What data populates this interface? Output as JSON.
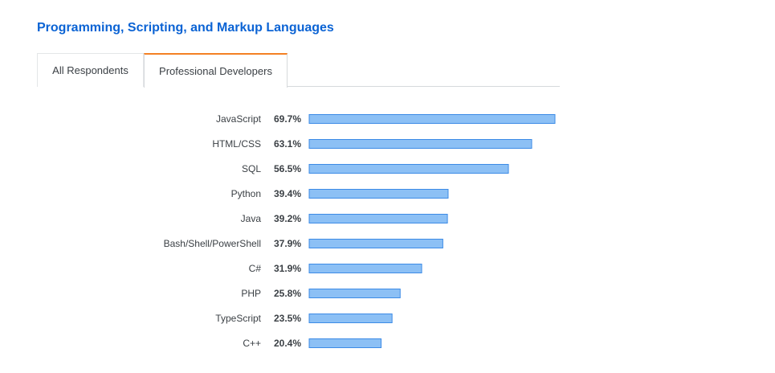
{
  "header": {
    "title": "Programming, Scripting, and Markup Languages"
  },
  "tabs": [
    {
      "label": "All Respondents",
      "active": false
    },
    {
      "label": "Professional Developers",
      "active": true
    }
  ],
  "colors": {
    "bar_fill": "#8cc0f5",
    "bar_stroke": "#3d8be6",
    "title": "#0b63d4",
    "active_tab_border": "#f48024"
  },
  "chart_data": {
    "type": "bar",
    "orientation": "horizontal",
    "categories": [
      "JavaScript",
      "HTML/CSS",
      "SQL",
      "Python",
      "Java",
      "Bash/Shell/PowerShell",
      "C#",
      "PHP",
      "TypeScript",
      "C++"
    ],
    "values": [
      69.7,
      63.1,
      56.5,
      39.4,
      39.2,
      37.9,
      31.9,
      25.8,
      23.5,
      20.4
    ],
    "value_labels": [
      "69.7%",
      "63.1%",
      "56.5%",
      "39.4%",
      "39.2%",
      "37.9%",
      "31.9%",
      "25.8%",
      "23.5%",
      "20.4%"
    ],
    "unit": "%",
    "xlim": [
      0,
      69.7
    ],
    "grid": false,
    "legend": "none"
  }
}
